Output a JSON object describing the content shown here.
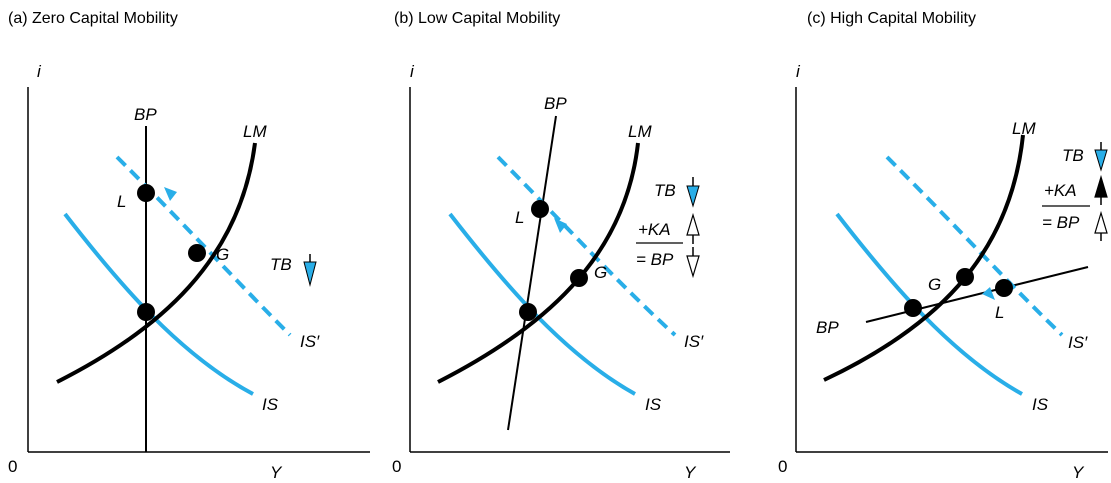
{
  "colors": {
    "ink": "#000000",
    "curve_blue": "#29aee8",
    "white": "#ffffff"
  },
  "panels": [
    {
      "title": "(a) Zero Capital Mobility",
      "labels": {
        "y_axis": "i",
        "x_axis": "Y",
        "origin": "0",
        "bp": "BP",
        "lm": "LM",
        "is": "IS",
        "is_shifted": "IS′",
        "point_l": "L",
        "point_g": "G",
        "tb": "TB"
      },
      "arrows": {
        "tb": "down"
      }
    },
    {
      "title": "(b) Low Capital Mobility",
      "labels": {
        "y_axis": "i",
        "x_axis": "Y",
        "origin": "0",
        "bp": "BP",
        "lm": "LM",
        "is": "IS",
        "is_shifted": "IS′",
        "point_l": "L",
        "point_g": "G",
        "tb": "TB",
        "ka": "+KA",
        "bp_sum": "= BP"
      },
      "arrows": {
        "tb": "down",
        "ka": "up",
        "bp_sum": "down"
      }
    },
    {
      "title": "(c) High Capital Mobility",
      "labels": {
        "y_axis": "i",
        "x_axis": "Y",
        "origin": "0",
        "bp": "BP",
        "lm": "LM",
        "is": "IS",
        "is_shifted": "IS′",
        "point_l": "L",
        "point_g": "G",
        "tb": "TB",
        "ka": "+KA",
        "bp_sum": "= BP"
      },
      "arrows": {
        "tb": "down",
        "ka": "up",
        "bp_sum": "up"
      }
    }
  ]
}
